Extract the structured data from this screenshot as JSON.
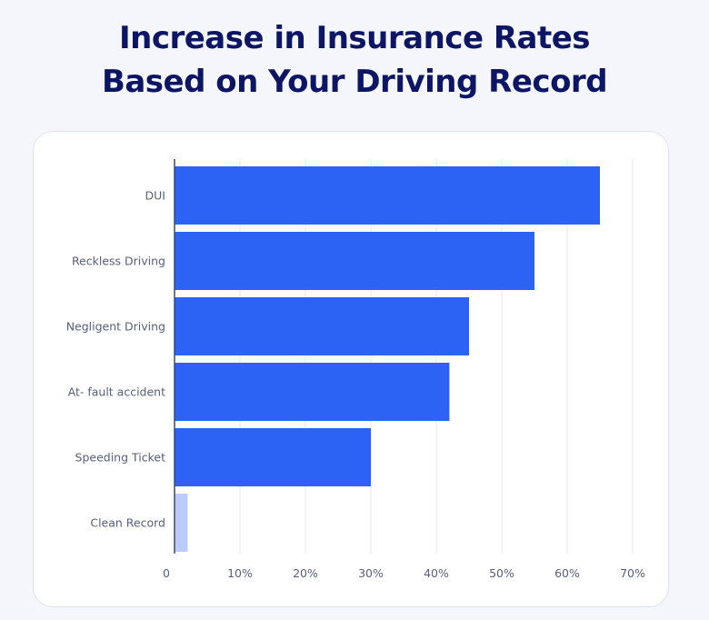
{
  "title_lines": [
    "Increase in Insurance Rates",
    "Based on Your Driving Record"
  ],
  "chart_data": {
    "type": "bar",
    "orientation": "horizontal",
    "title": "Increase in Insurance Rates Based on Your Driving Record",
    "categories": [
      "DUI",
      "Reckless Driving",
      "Negligent Driving",
      "At- fault accident",
      "Speeding Ticket",
      "Clean Record"
    ],
    "values": [
      65,
      55,
      45,
      42,
      30,
      2
    ],
    "x_ticks": [
      "0",
      "10%",
      "20%",
      "30%",
      "40%",
      "50%",
      "60%",
      "70%"
    ],
    "xlim": [
      0,
      70
    ],
    "xlabel": "",
    "ylabel": "",
    "grid": true,
    "legend": "none",
    "colors": {
      "bar": "#2c63f5",
      "bar_muted": "#b9ccfb",
      "grid": "#e3e6ee",
      "axis": "#3b4a6b"
    }
  }
}
